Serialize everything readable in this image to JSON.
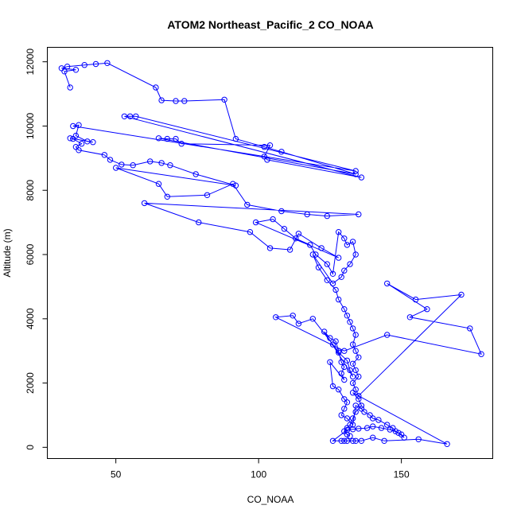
{
  "chart_data": {
    "type": "line",
    "title": "ATOM2 Northeast_Pacific_2 CO_NOAA",
    "xlabel": "CO_NOAA",
    "ylabel": "Altitude (m)",
    "xlim": [
      26,
      182
    ],
    "ylim": [
      -350,
      12450
    ],
    "x_ticks": [
      50,
      100,
      150
    ],
    "y_ticks": [
      0,
      2000,
      4000,
      6000,
      8000,
      10000,
      12000
    ],
    "grid": false,
    "legend": "none",
    "colors": {
      "series": "#0000ff",
      "frame": "#000000"
    },
    "markers": "open-circle",
    "series": [
      {
        "points": [
          [
            34,
            11200
          ],
          [
            32,
            11700
          ],
          [
            36,
            11750
          ],
          [
            31,
            11800
          ],
          [
            33,
            11850
          ],
          [
            39,
            11900
          ],
          [
            43,
            11930
          ],
          [
            47,
            11960
          ],
          [
            64,
            11200
          ],
          [
            66,
            10800
          ],
          [
            71,
            10780
          ],
          [
            74,
            10780
          ],
          [
            88,
            10820
          ],
          [
            92,
            9600
          ],
          [
            102,
            9350
          ],
          [
            108,
            9200
          ],
          [
            134,
            8500
          ],
          [
            65,
            9620
          ],
          [
            68,
            9600
          ],
          [
            71,
            9600
          ],
          [
            73,
            9450
          ],
          [
            104,
            9400
          ],
          [
            102,
            9050
          ],
          [
            103,
            8950
          ],
          [
            136,
            8400
          ],
          [
            53,
            10300
          ],
          [
            55,
            10300
          ],
          [
            57,
            10300
          ],
          [
            134,
            8600
          ],
          [
            35,
            10000
          ],
          [
            37,
            10030
          ],
          [
            36,
            9700
          ],
          [
            40,
            9520
          ],
          [
            42,
            9500
          ],
          [
            34,
            9620
          ],
          [
            35,
            9600
          ],
          [
            38,
            9450
          ],
          [
            36,
            9350
          ],
          [
            37,
            9250
          ],
          [
            46,
            9100
          ],
          [
            48,
            8950
          ],
          [
            52,
            8800
          ],
          [
            56,
            8780
          ],
          [
            62,
            8900
          ],
          [
            66,
            8850
          ],
          [
            69,
            8780
          ],
          [
            78,
            8500
          ],
          [
            92,
            8150
          ],
          [
            50,
            8700
          ],
          [
            65,
            8200
          ],
          [
            68,
            7800
          ],
          [
            82,
            7850
          ],
          [
            91,
            8200
          ],
          [
            96,
            7550
          ],
          [
            108,
            7350
          ],
          [
            117,
            7250
          ],
          [
            124,
            7200
          ],
          [
            135,
            7250
          ],
          [
            60,
            7600
          ],
          [
            79,
            7000
          ],
          [
            97,
            6700
          ],
          [
            104,
            6200
          ],
          [
            111,
            6150
          ],
          [
            114,
            6650
          ],
          [
            122,
            6200
          ],
          [
            128,
            5900
          ],
          [
            99,
            7000
          ],
          [
            105,
            7100
          ],
          [
            109,
            6800
          ],
          [
            113,
            6500
          ],
          [
            118,
            6300
          ],
          [
            120,
            6000
          ],
          [
            124,
            5700
          ],
          [
            126,
            5400
          ],
          [
            128,
            6700
          ],
          [
            130,
            6500
          ],
          [
            131,
            6300
          ],
          [
            133,
            6400
          ],
          [
            134,
            6000
          ],
          [
            132,
            5700
          ],
          [
            130,
            5500
          ],
          [
            129,
            5300
          ],
          [
            126,
            5100
          ],
          [
            119,
            6000
          ],
          [
            121,
            5600
          ],
          [
            124,
            5200
          ],
          [
            127,
            4900
          ],
          [
            128,
            4600
          ],
          [
            130,
            4300
          ],
          [
            131,
            4100
          ],
          [
            132,
            3900
          ],
          [
            133,
            3700
          ],
          [
            134,
            3500
          ],
          [
            133,
            3200
          ],
          [
            134,
            3000
          ],
          [
            135,
            2800
          ],
          [
            133,
            2600
          ],
          [
            134,
            2400
          ],
          [
            135,
            2200
          ],
          [
            133,
            2000
          ],
          [
            134,
            1800
          ],
          [
            135,
            1600
          ],
          [
            171,
            4750
          ],
          [
            155,
            4600
          ],
          [
            145,
            5100
          ],
          [
            159,
            4300
          ],
          [
            153,
            4050
          ],
          [
            174,
            3700
          ],
          [
            178,
            2900
          ],
          [
            145,
            3500
          ],
          [
            130,
            3000
          ],
          [
            106,
            4050
          ],
          [
            112,
            4100
          ],
          [
            114,
            3850
          ],
          [
            119,
            4000
          ],
          [
            126,
            3200
          ],
          [
            128,
            2950
          ],
          [
            131,
            2700
          ],
          [
            132,
            2400
          ],
          [
            133,
            2200
          ],
          [
            123,
            3600
          ],
          [
            125,
            3400
          ],
          [
            127,
            3300
          ],
          [
            128,
            3000
          ],
          [
            129,
            2650
          ],
          [
            130,
            2500
          ],
          [
            129,
            2300
          ],
          [
            130,
            2100
          ],
          [
            125,
            2650
          ],
          [
            126,
            1900
          ],
          [
            128,
            1800
          ],
          [
            130,
            1500
          ],
          [
            131,
            1400
          ],
          [
            130,
            1200
          ],
          [
            129,
            1000
          ],
          [
            131,
            900
          ],
          [
            133,
            700
          ],
          [
            134,
            1300
          ],
          [
            136,
            1200
          ],
          [
            137,
            1100
          ],
          [
            139,
            1000
          ],
          [
            140,
            900
          ],
          [
            142,
            850
          ],
          [
            145,
            700
          ],
          [
            147,
            600
          ],
          [
            148,
            500
          ],
          [
            150,
            400
          ],
          [
            151,
            300
          ],
          [
            149,
            450
          ],
          [
            146,
            550
          ],
          [
            143,
            600
          ],
          [
            140,
            650
          ],
          [
            138,
            600
          ],
          [
            135,
            580
          ],
          [
            133,
            560
          ],
          [
            131,
            540
          ],
          [
            126,
            200
          ],
          [
            129,
            200
          ],
          [
            130,
            200
          ],
          [
            131,
            200
          ],
          [
            133,
            200
          ],
          [
            134,
            200
          ],
          [
            136,
            200
          ],
          [
            140,
            300
          ],
          [
            144,
            200
          ],
          [
            156,
            250
          ],
          [
            166,
            100
          ],
          [
            133,
            1700
          ],
          [
            135,
            1500
          ],
          [
            136,
            1300
          ],
          [
            134,
            1100
          ],
          [
            133,
            900
          ],
          [
            132,
            700
          ],
          [
            131,
            600
          ],
          [
            130,
            500
          ],
          [
            131,
            400
          ],
          [
            132,
            350
          ]
        ]
      }
    ]
  }
}
